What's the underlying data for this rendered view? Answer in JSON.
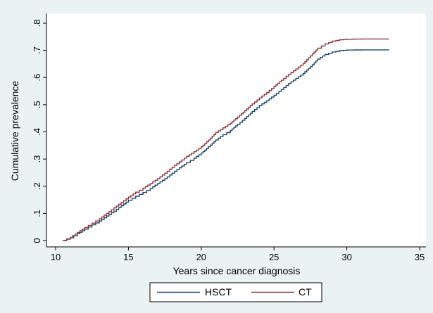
{
  "chart_data": {
    "type": "line",
    "title": "",
    "xlabel": "Years since cancer diagnosis",
    "ylabel": "Cumulative prevalence",
    "xlim": [
      10,
      35
    ],
    "ylim": [
      0,
      0.8
    ],
    "xticks": [
      10,
      15,
      20,
      25,
      30,
      35
    ],
    "xtick_labels": [
      "10",
      "15",
      "20",
      "25",
      "30",
      "35"
    ],
    "yticks": [
      0,
      0.1,
      0.2,
      0.3,
      0.4,
      0.5,
      0.6,
      0.7,
      0.8
    ],
    "ytick_labels": [
      "0",
      ".1",
      ".2",
      ".3",
      ".4",
      ".5",
      ".6",
      ".7",
      ".8"
    ],
    "grid": false,
    "legend_position": "bottom",
    "series": [
      {
        "name": "HSCT",
        "color": "#1a476f",
        "x": [
          10.5,
          11,
          11.5,
          12,
          12.5,
          13,
          13.5,
          14,
          14.5,
          15,
          15.5,
          16,
          16.5,
          17,
          17.5,
          18,
          18.5,
          19,
          19.5,
          20,
          20.5,
          21,
          21.5,
          22,
          22.5,
          23,
          23.5,
          24,
          24.5,
          25,
          25.5,
          26,
          26.5,
          27,
          27.5,
          28,
          28.5,
          29,
          29.5,
          30,
          31,
          32,
          32.9
        ],
        "y": [
          0.0,
          0.01,
          0.025,
          0.042,
          0.058,
          0.072,
          0.09,
          0.108,
          0.128,
          0.148,
          0.163,
          0.177,
          0.192,
          0.21,
          0.228,
          0.248,
          0.268,
          0.287,
          0.303,
          0.322,
          0.345,
          0.37,
          0.39,
          0.405,
          0.428,
          0.45,
          0.475,
          0.497,
          0.515,
          0.535,
          0.556,
          0.578,
          0.597,
          0.615,
          0.64,
          0.668,
          0.685,
          0.694,
          0.699,
          0.701,
          0.702,
          0.702,
          0.702
        ]
      },
      {
        "name": "CT",
        "color": "#90353b",
        "x": [
          10.5,
          11,
          11.5,
          12,
          12.5,
          13,
          13.5,
          14,
          14.5,
          15,
          15.5,
          16,
          16.5,
          17,
          17.5,
          18,
          18.5,
          19,
          19.5,
          20,
          20.5,
          21,
          21.5,
          22,
          22.5,
          23,
          23.5,
          24,
          24.5,
          25,
          25.5,
          26,
          26.5,
          27,
          27.5,
          28,
          28.5,
          29,
          29.5,
          30,
          31,
          32,
          32.9
        ],
        "y": [
          0.0,
          0.012,
          0.03,
          0.048,
          0.064,
          0.08,
          0.1,
          0.12,
          0.14,
          0.16,
          0.178,
          0.193,
          0.21,
          0.228,
          0.248,
          0.27,
          0.29,
          0.31,
          0.327,
          0.345,
          0.37,
          0.398,
          0.415,
          0.432,
          0.455,
          0.478,
          0.503,
          0.525,
          0.545,
          0.567,
          0.59,
          0.612,
          0.632,
          0.652,
          0.68,
          0.708,
          0.724,
          0.734,
          0.739,
          0.741,
          0.742,
          0.742,
          0.742
        ]
      }
    ]
  }
}
